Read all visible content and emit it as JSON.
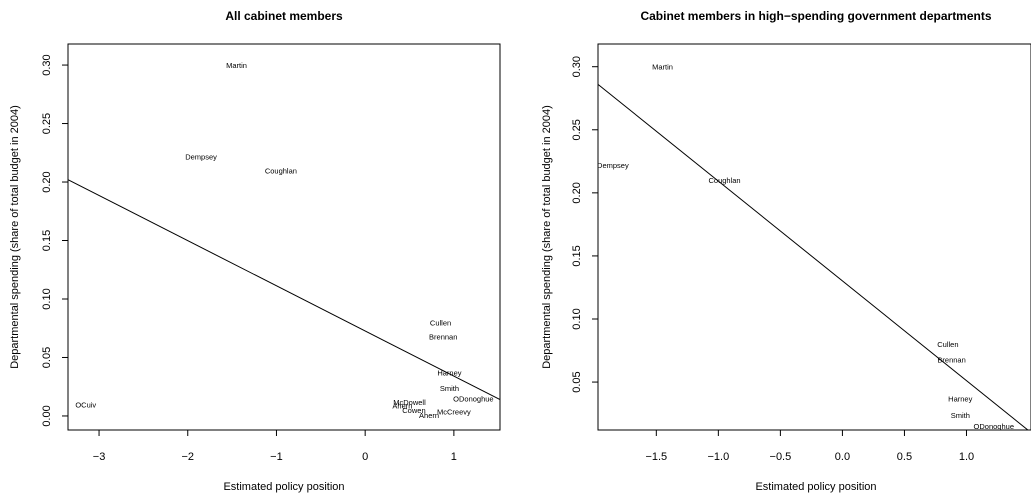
{
  "chart_data": [
    {
      "type": "scatter",
      "title": "All cabinet members",
      "xlabel": "Estimated policy position",
      "ylabel": "Departmental spending (share of total budget in 2004)",
      "xlim": [
        -3.35,
        1.52
      ],
      "ylim": [
        -0.012,
        0.318
      ],
      "x_ticks": [
        "−3",
        "−2",
        "−1",
        "0",
        "1"
      ],
      "x_tick_values": [
        -3,
        -2,
        -1,
        0,
        1
      ],
      "y_ticks": [
        "0.00",
        "0.05",
        "0.10",
        "0.15",
        "0.20",
        "0.25",
        "0.30"
      ],
      "y_tick_values": [
        0,
        0.05,
        0.1,
        0.15,
        0.2,
        0.25,
        0.3
      ],
      "points": [
        {
          "label": "Martin",
          "x": -1.45,
          "y": 0.3
        },
        {
          "label": "Dempsey",
          "x": -1.85,
          "y": 0.222
        },
        {
          "label": "Coughlan",
          "x": -0.95,
          "y": 0.21
        },
        {
          "label": "Cullen",
          "x": 0.85,
          "y": 0.08
        },
        {
          "label": "Brennan",
          "x": 0.88,
          "y": 0.068
        },
        {
          "label": "Harney",
          "x": 0.95,
          "y": 0.037
        },
        {
          "label": "Smith",
          "x": 0.95,
          "y": 0.024
        },
        {
          "label": "ODonoghue",
          "x": 1.22,
          "y": 0.015
        },
        {
          "label": "McDowell",
          "x": 0.5,
          "y": 0.012
        },
        {
          "label": "Ahern",
          "x": 0.42,
          "y": 0.009
        },
        {
          "label": "Cowen",
          "x": 0.55,
          "y": 0.005
        },
        {
          "label": "McCreevy",
          "x": 1.0,
          "y": 0.004
        },
        {
          "label": "Ahern",
          "x": 0.72,
          "y": 0.001
        },
        {
          "label": "OCuiv",
          "x": -3.15,
          "y": 0.01
        }
      ],
      "fit_line": {
        "x": [
          -3.35,
          1.52
        ],
        "y": [
          0.202,
          0.014
        ]
      }
    },
    {
      "type": "scatter",
      "title": "Cabinet members in high−spending government departments",
      "xlabel": "Estimated policy position",
      "ylabel": "Departmental spending (share of total budget in 2004)",
      "xlim": [
        -1.97,
        1.52
      ],
      "ylim": [
        0.012,
        0.318
      ],
      "x_ticks": [
        "−1.5",
        "−1.0",
        "−0.5",
        "0.0",
        "0.5",
        "1.0"
      ],
      "x_tick_values": [
        -1.5,
        -1.0,
        -0.5,
        0.0,
        0.5,
        1.0
      ],
      "y_ticks": [
        "0.05",
        "0.10",
        "0.15",
        "0.20",
        "0.25",
        "0.30"
      ],
      "y_tick_values": [
        0.05,
        0.1,
        0.15,
        0.2,
        0.25,
        0.3
      ],
      "points": [
        {
          "label": "Martin",
          "x": -1.45,
          "y": 0.3
        },
        {
          "label": "Dempsey",
          "x": -1.85,
          "y": 0.222
        },
        {
          "label": "Coughlan",
          "x": -0.95,
          "y": 0.21
        },
        {
          "label": "Cullen",
          "x": 0.85,
          "y": 0.08
        },
        {
          "label": "Brennan",
          "x": 0.88,
          "y": 0.068
        },
        {
          "label": "Harney",
          "x": 0.95,
          "y": 0.037
        },
        {
          "label": "Smith",
          "x": 0.95,
          "y": 0.024
        },
        {
          "label": "ODonoghue",
          "x": 1.22,
          "y": 0.015
        }
      ],
      "fit_line": {
        "x": [
          -1.97,
          1.52
        ],
        "y": [
          0.286,
          0.01
        ]
      }
    }
  ]
}
